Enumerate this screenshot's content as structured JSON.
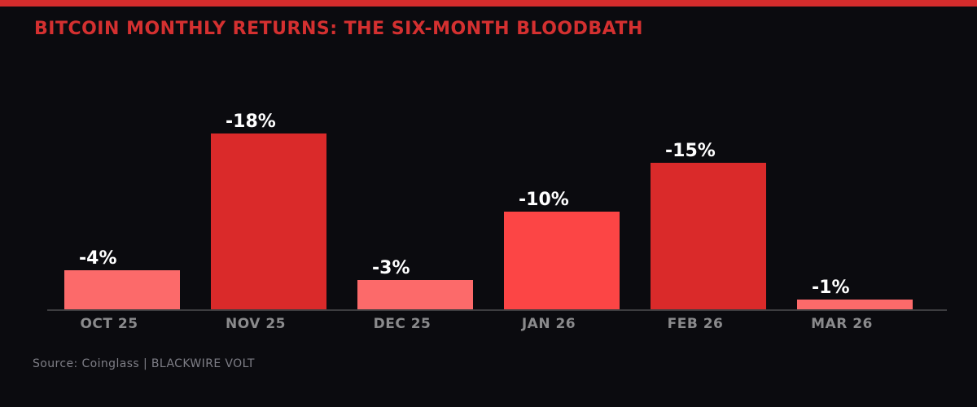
{
  "header": {
    "title": "BITCOIN MONTHLY RETURNS: THE SIX-MONTH BLOODBATH"
  },
  "chart_data": {
    "type": "bar",
    "title": "BITCOIN MONTHLY RETURNS: THE SIX-MONTH BLOODBATH",
    "categories": [
      "OCT 25",
      "NOV 25",
      "DEC 25",
      "JAN 26",
      "FEB 26",
      "MAR 26"
    ],
    "values": [
      -4,
      -18,
      -3,
      -10,
      -15,
      -1
    ],
    "labels": [
      "-4%",
      "-18%",
      "-3%",
      "-10%",
      "-15%",
      "-1%"
    ],
    "bar_colors": [
      "#fc6a6a",
      "#da2a2a",
      "#fc6a6a",
      "#fc4545",
      "#da2a2a",
      "#fc6a6a"
    ],
    "xlabel": "",
    "ylabel": "",
    "ylim": [
      -20,
      0
    ],
    "grid": false,
    "legend": false
  },
  "footer": {
    "source": "Source: Coinglass | BLACKWIRE VOLT"
  },
  "colors": {
    "background": "#0b0b0f",
    "accent_bar": "#d42c2c",
    "title_text": "#d43030",
    "bar_strong_loss": "#da2a2a",
    "bar_medium_loss": "#fc4545",
    "bar_light_loss": "#fc6a6a",
    "axis_line": "#3d3d40",
    "value_label_text": "#ffffff",
    "tick_label_text": "#8a8a8c",
    "source_text": "#7e7e86"
  }
}
